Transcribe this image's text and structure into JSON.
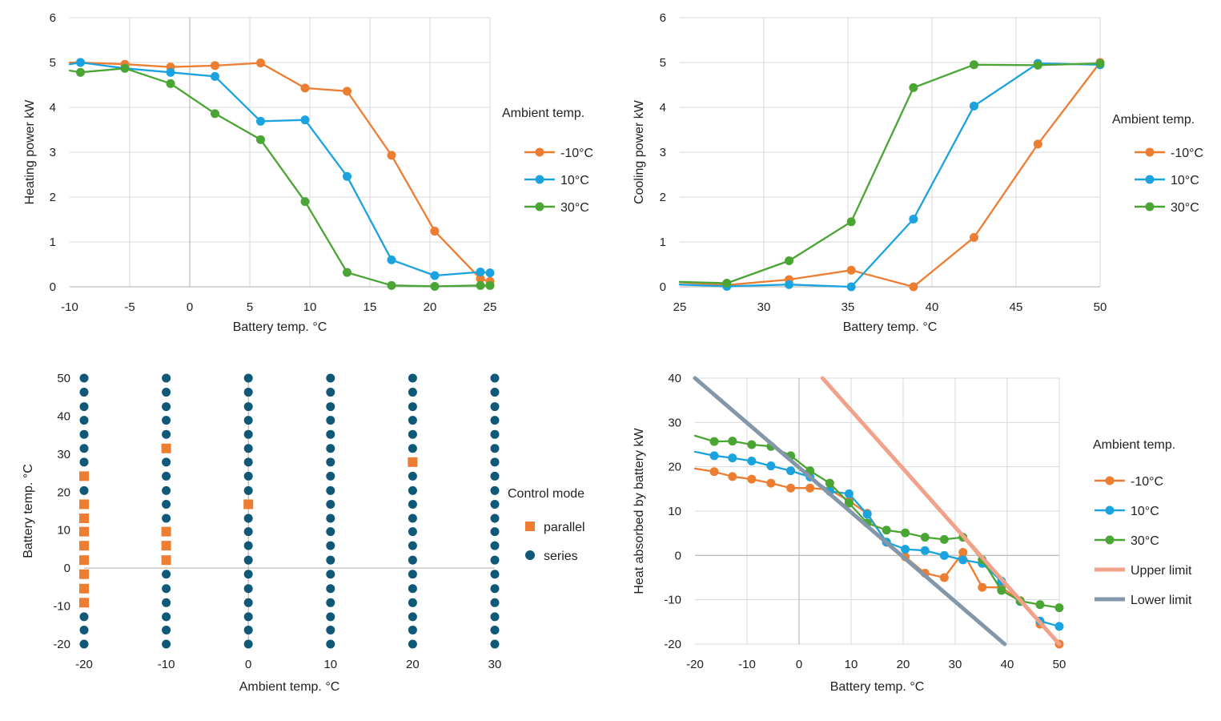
{
  "chart_data": [
    {
      "id": "heating",
      "type": "line",
      "xlabel": "Battery temp. °C",
      "ylabel": "Heating power kW",
      "xlim": [
        -10,
        25
      ],
      "ylim": [
        0,
        6
      ],
      "xticks": [
        -10,
        -5,
        0,
        5,
        10,
        15,
        20,
        25
      ],
      "yticks": [
        0,
        1,
        2,
        3,
        4,
        5,
        6
      ],
      "tick_labels_x": [
        "-10",
        "-5",
        "0",
        "5",
        "10",
        "15",
        "20",
        "25"
      ],
      "tick_labels_y": [
        "0",
        "1",
        "2",
        "3",
        "4",
        "5",
        "6"
      ],
      "grid": true,
      "legend_title": "Ambient temp.",
      "series": [
        {
          "name": "-10°C",
          "color": "#ED7D31",
          "x": [
            -10,
            -9.1,
            -5.4,
            -1.6,
            2.1,
            5.9,
            9.6,
            13.1,
            16.8,
            20.4,
            24.2,
            25
          ],
          "y": [
            5.0,
            5.0,
            4.96,
            4.9,
            4.93,
            4.99,
            4.43,
            4.36,
            2.93,
            1.24,
            0.18,
            0.12
          ]
        },
        {
          "name": "10°C",
          "color": "#1AA3DF",
          "x": [
            -10,
            -9.1,
            -5.4,
            -1.6,
            2.1,
            5.9,
            9.6,
            13.1,
            16.8,
            20.4,
            24.2,
            25
          ],
          "y": [
            4.96,
            5.0,
            4.87,
            4.78,
            4.69,
            3.69,
            3.72,
            2.46,
            0.6,
            0.25,
            0.33,
            0.31
          ]
        },
        {
          "name": "30°C",
          "color": "#4AA535",
          "x": [
            -10,
            -9.1,
            -5.4,
            -1.6,
            2.1,
            5.9,
            9.6,
            13.1,
            16.8,
            20.4,
            24.2,
            25
          ],
          "y": [
            4.82,
            4.78,
            4.87,
            4.53,
            3.86,
            3.28,
            1.9,
            0.32,
            0.03,
            0.01,
            0.03,
            0.03
          ]
        }
      ]
    },
    {
      "id": "cooling",
      "type": "line",
      "xlabel": "Battery temp. °C",
      "ylabel": "Cooling power kW",
      "xlim": [
        25,
        50
      ],
      "ylim": [
        0,
        6
      ],
      "xticks": [
        25,
        30,
        35,
        40,
        45,
        50
      ],
      "yticks": [
        0,
        1,
        2,
        3,
        4,
        5,
        6
      ],
      "tick_labels_x": [
        "25",
        "30",
        "35",
        "40",
        "45",
        "50"
      ],
      "tick_labels_y": [
        "0",
        "1",
        "2",
        "3",
        "4",
        "5",
        "6"
      ],
      "grid": true,
      "legend_title": "Ambient temp.",
      "series": [
        {
          "name": "-10°C",
          "color": "#ED7D31",
          "x": [
            25,
            27.8,
            31.5,
            35.2,
            38.9,
            42.5,
            46.3,
            50
          ],
          "y": [
            0.1,
            0.04,
            0.16,
            0.37,
            0.0,
            1.1,
            3.18,
            5.0
          ]
        },
        {
          "name": "10°C",
          "color": "#1AA3DF",
          "x": [
            25,
            27.8,
            31.5,
            35.2,
            38.9,
            42.5,
            46.3,
            50
          ],
          "y": [
            0.05,
            0.01,
            0.05,
            0.0,
            1.51,
            4.03,
            4.98,
            4.95
          ]
        },
        {
          "name": "30°C",
          "color": "#4AA535",
          "x": [
            25,
            27.8,
            31.5,
            35.2,
            38.9,
            42.5,
            46.3,
            50
          ],
          "y": [
            0.11,
            0.08,
            0.58,
            1.45,
            4.44,
            4.95,
            4.94,
            4.98
          ]
        }
      ]
    },
    {
      "id": "control",
      "type": "scatter",
      "xlabel": "Ambient temp. °C",
      "ylabel": "Battery temp. °C",
      "xlim": [
        -20,
        30
      ],
      "ylim": [
        -20,
        50
      ],
      "xticks": [
        -20,
        -10,
        0,
        10,
        20,
        30
      ],
      "yticks": [
        -20,
        -10,
        0,
        10,
        20,
        30,
        40,
        50
      ],
      "tick_labels_x": [
        "-20",
        "-10",
        "0",
        "10",
        "20",
        "30"
      ],
      "tick_labels_y": [
        "-20",
        "-10",
        "0",
        "10",
        "20",
        "30",
        "40",
        "50"
      ],
      "grid": false,
      "legend_title": "Control mode",
      "battery_levels": [
        -20,
        -16.3,
        -12.8,
        -9.1,
        -5.4,
        -1.6,
        2.1,
        5.9,
        9.6,
        13.1,
        16.8,
        20.4,
        24.2,
        27.9,
        31.5,
        35.2,
        38.9,
        42.5,
        46.3,
        50
      ],
      "ambient_levels": [
        -20,
        -10,
        0,
        10,
        20,
        30
      ],
      "parallel": [
        [
          -20,
          -9.1
        ],
        [
          -20,
          -5.4
        ],
        [
          -20,
          -1.6
        ],
        [
          -20,
          2.1
        ],
        [
          -20,
          5.9
        ],
        [
          -20,
          9.6
        ],
        [
          -20,
          13.1
        ],
        [
          -20,
          16.8
        ],
        [
          -20,
          24.2
        ],
        [
          -10,
          2.1
        ],
        [
          -10,
          5.9
        ],
        [
          -10,
          9.6
        ],
        [
          -10,
          31.5
        ],
        [
          0,
          16.8
        ],
        [
          20,
          27.9
        ]
      ],
      "series": [
        {
          "name": "parallel",
          "color": "#ED7D31",
          "marker": "square"
        },
        {
          "name": "series",
          "color": "#0F5877",
          "marker": "circle"
        }
      ]
    },
    {
      "id": "heat",
      "type": "line",
      "xlabel": "Battery temp. °C",
      "ylabel": "Heat absorbed by battery kW",
      "xlim": [
        -20,
        50
      ],
      "ylim": [
        -20,
        40
      ],
      "xticks": [
        -20,
        -10,
        0,
        10,
        20,
        30,
        40,
        50
      ],
      "yticks": [
        -20,
        -10,
        0,
        10,
        20,
        30,
        40
      ],
      "tick_labels_x": [
        "-20",
        "-10",
        "0",
        "10",
        "20",
        "30",
        "40",
        "50"
      ],
      "tick_labels_y": [
        "-20",
        "-10",
        "0",
        "10",
        "20",
        "30",
        "40"
      ],
      "grid": true,
      "legend_title": "Ambient temp.",
      "series": [
        {
          "name": "-10°C",
          "color": "#ED7D31",
          "marker": true,
          "x": [
            -20,
            -16.3,
            -12.8,
            -9.1,
            -5.4,
            -1.6,
            2.1,
            5.9,
            9.6,
            13.1,
            16.8,
            20.4,
            24.2,
            27.9,
            31.5,
            35.2,
            38.9,
            42.5,
            46.3,
            50
          ],
          "y": [
            19.6,
            18.9,
            17.8,
            17.2,
            16.3,
            15.2,
            15.2,
            14.8,
            12.3,
            9.5,
            3.0,
            -0.3,
            -4.0,
            -5.0,
            0.7,
            -7.2,
            -7.2,
            -10.2,
            -15.5,
            -20.0
          ]
        },
        {
          "name": "10°C",
          "color": "#1AA3DF",
          "marker": true,
          "x": [
            -20,
            -16.3,
            -12.8,
            -9.1,
            -5.4,
            -1.6,
            2.1,
            5.9,
            9.6,
            13.1,
            16.8,
            20.4,
            24.2,
            27.9,
            31.5,
            35.2,
            38.9,
            42.5,
            46.3,
            50
          ],
          "y": [
            23.4,
            22.5,
            22.0,
            21.3,
            20.2,
            19.1,
            17.7,
            14.5,
            13.9,
            9.3,
            3.0,
            1.4,
            1.1,
            0.0,
            -1.0,
            -1.8,
            -5.8,
            -10.4,
            -14.8,
            -16.0
          ]
        },
        {
          "name": "30°C",
          "color": "#4AA535",
          "marker": true,
          "x": [
            -20,
            -16.3,
            -12.8,
            -9.1,
            -5.4,
            -1.6,
            2.1,
            5.9,
            9.6,
            13.1,
            16.8,
            20.4,
            24.2,
            27.9,
            31.5,
            35.2,
            38.9,
            42.5,
            46.3,
            50
          ],
          "y": [
            27.0,
            25.7,
            25.8,
            25.0,
            24.6,
            22.5,
            19.1,
            16.3,
            11.8,
            7.3,
            5.7,
            5.1,
            4.1,
            3.6,
            4.1,
            -1.0,
            -7.9,
            -10.3,
            -11.1,
            -11.8
          ]
        },
        {
          "name": "Upper limit",
          "color": "#F0A28A",
          "marker": false,
          "width": 5,
          "x": [
            4.5,
            50
          ],
          "y": [
            40,
            -20
          ]
        },
        {
          "name": "Lower limit",
          "color": "#8497A8",
          "marker": false,
          "width": 5,
          "x": [
            -20,
            39.5
          ],
          "y": [
            40,
            -20
          ]
        }
      ]
    }
  ]
}
